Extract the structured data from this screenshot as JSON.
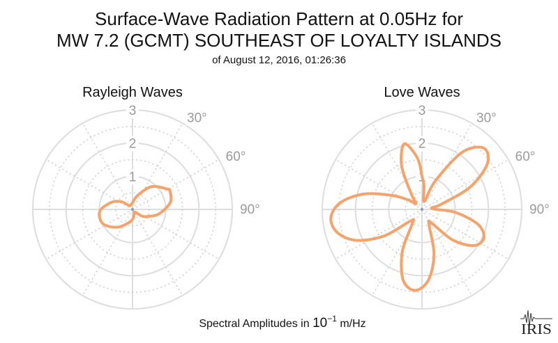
{
  "title_line1": "Surface-Wave Radiation Pattern at 0.05Hz for",
  "title_line2": "MW 7.2 (GCMT) SOUTHEAST OF LOYALTY ISLANDS",
  "subtitle": "of August 12, 2016, 01:26:36",
  "footer": {
    "prefix": "Spectral Amplitudes in ",
    "base": "10",
    "exponent": "−1",
    "suffix": " m/Hz"
  },
  "logo": {
    "text": "IRIS"
  },
  "colors": {
    "pattern": "#f5a36a",
    "grid_solid": "#dddddd",
    "grid_dotted": "#cfcfcf",
    "label": "#9a9a9a"
  },
  "chart_data": [
    {
      "type": "polar-line",
      "title": "Rayleigh Waves",
      "r_ticks": [
        "1",
        "2",
        "3"
      ],
      "rlim": [
        0,
        3
      ],
      "angle_ticks": [
        "30°",
        "60°",
        "90°"
      ],
      "angle_zero": "top",
      "direction": "clockwise",
      "grid": true,
      "series": [
        {
          "angle_deg": [
            0,
            20,
            40,
            60,
            65,
            80,
            100,
            115,
            125,
            140,
            160,
            180,
            200,
            220,
            240,
            255,
            270,
            290,
            305,
            320,
            340,
            360
          ],
          "r": [
            0.2,
            0.45,
            0.9,
            1.22,
            1.25,
            1.15,
            0.8,
            0.5,
            0.35,
            0.1,
            0.15,
            0.3,
            0.45,
            0.7,
            0.95,
            1.02,
            0.95,
            0.65,
            0.4,
            0.15,
            0.15,
            0.2
          ]
        }
      ]
    },
    {
      "type": "polar-line",
      "title": "Love Waves",
      "r_ticks": [
        "1",
        "2",
        "3"
      ],
      "rlim": [
        0,
        3
      ],
      "angle_ticks": [
        "30°",
        "60°",
        "90°"
      ],
      "angle_zero": "top",
      "direction": "clockwise",
      "grid": true,
      "series": [
        {
          "angle_deg": [
            0,
            5,
            15,
            25,
            35,
            45,
            55,
            65,
            75,
            85,
            95,
            105,
            115,
            125,
            135,
            145,
            155,
            165,
            175,
            185,
            195,
            205,
            215,
            225,
            235,
            245,
            255,
            265,
            275,
            285,
            295,
            305,
            315,
            325,
            335,
            345,
            355,
            360
          ],
          "r": [
            1.0,
            0.7,
            0.25,
            0.95,
            2.1,
            2.62,
            2.4,
            1.6,
            0.6,
            0.3,
            1.0,
            1.75,
            2.05,
            1.9,
            1.3,
            0.5,
            0.5,
            1.4,
            2.15,
            2.45,
            2.2,
            1.4,
            0.5,
            0.5,
            1.4,
            2.2,
            2.65,
            2.75,
            2.45,
            1.8,
            1.0,
            0.5,
            0.25,
            0.55,
            1.45,
            2.05,
            1.55,
            1.0
          ]
        }
      ]
    }
  ]
}
